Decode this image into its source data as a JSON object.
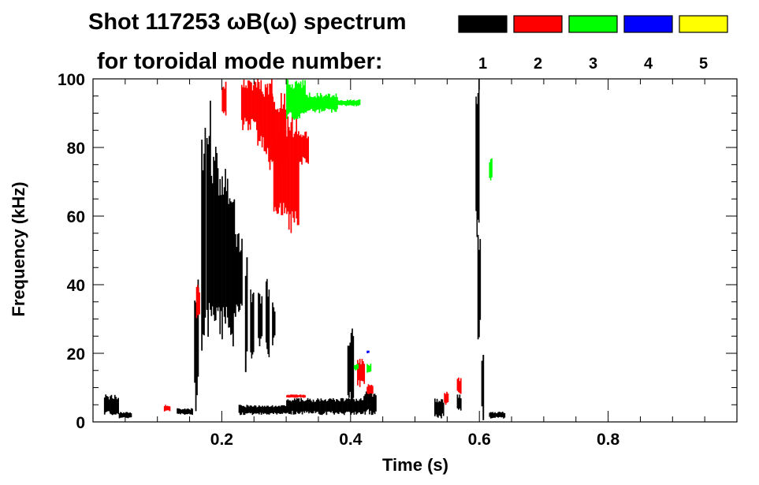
{
  "header": {
    "title_line1": "Shot 117253 ωB(ω) spectrum",
    "title_line2": "for toroidal mode number:"
  },
  "legend": [
    {
      "label": "1",
      "color": "#000000"
    },
    {
      "label": "2",
      "color": "#ff0000"
    },
    {
      "label": "3",
      "color": "#00ff00"
    },
    {
      "label": "4",
      "color": "#0000ff"
    },
    {
      "label": "5",
      "color": "#ffff00"
    }
  ],
  "chart_data": {
    "type": "heatmap",
    "xlabel": "Time (s)",
    "ylabel": "Frequency (kHz)",
    "xlim": [
      0,
      1.0
    ],
    "ylim": [
      0,
      100
    ],
    "x_ticks": [
      {
        "value": 0.2,
        "label": "0.2"
      },
      {
        "value": 0.4,
        "label": "0.4"
      },
      {
        "value": 0.6,
        "label": "0.6"
      },
      {
        "value": 0.8,
        "label": "0.8"
      }
    ],
    "y_ticks": [
      {
        "value": 0,
        "label": "0"
      },
      {
        "value": 20,
        "label": "20"
      },
      {
        "value": 40,
        "label": "40"
      },
      {
        "value": 60,
        "label": "60"
      },
      {
        "value": 80,
        "label": "80"
      },
      {
        "value": 100,
        "label": "100"
      }
    ],
    "grid": false,
    "series": [
      {
        "mode": "1",
        "color": "#000000",
        "regions": [
          {
            "t0": 0.017,
            "t1": 0.04,
            "f0": 2,
            "f1": 8
          },
          {
            "t0": 0.04,
            "t1": 0.06,
            "f0": 1,
            "f1": 3
          },
          {
            "t0": 0.13,
            "t1": 0.155,
            "f0": 2,
            "f1": 4
          },
          {
            "t0": 0.157,
            "t1": 0.164,
            "f0": 3,
            "f1": 45
          },
          {
            "t0": 0.168,
            "t1": 0.175,
            "f0": 12,
            "f1": 88
          },
          {
            "t0": 0.176,
            "t1": 0.183,
            "f0": 20,
            "f1": 100
          },
          {
            "t0": 0.183,
            "t1": 0.193,
            "f0": 28,
            "f1": 82
          },
          {
            "t0": 0.193,
            "t1": 0.213,
            "f0": 24,
            "f1": 76
          },
          {
            "t0": 0.213,
            "t1": 0.222,
            "f0": 22,
            "f1": 65
          },
          {
            "t0": 0.222,
            "t1": 0.232,
            "f0": 30,
            "f1": 55
          },
          {
            "t0": 0.236,
            "t1": 0.24,
            "f0": 12,
            "f1": 48
          },
          {
            "t0": 0.244,
            "t1": 0.25,
            "f0": 18,
            "f1": 40
          },
          {
            "t0": 0.256,
            "t1": 0.263,
            "f0": 22,
            "f1": 38
          },
          {
            "t0": 0.268,
            "t1": 0.274,
            "f0": 18,
            "f1": 42
          },
          {
            "t0": 0.278,
            "t1": 0.283,
            "f0": 22,
            "f1": 35
          },
          {
            "t0": 0.226,
            "t1": 0.3,
            "f0": 2,
            "f1": 5
          },
          {
            "t0": 0.3,
            "t1": 0.36,
            "f0": 2,
            "f1": 7
          },
          {
            "t0": 0.36,
            "t1": 0.42,
            "f0": 2,
            "f1": 7
          },
          {
            "t0": 0.395,
            "t1": 0.405,
            "f0": 3,
            "f1": 28
          },
          {
            "t0": 0.42,
            "t1": 0.44,
            "f0": 2,
            "f1": 9
          },
          {
            "t0": 0.53,
            "t1": 0.545,
            "f0": 1,
            "f1": 7
          },
          {
            "t0": 0.565,
            "t1": 0.572,
            "f0": 3,
            "f1": 8
          },
          {
            "t0": 0.594,
            "t1": 0.6,
            "f0": 50,
            "f1": 100
          },
          {
            "t0": 0.597,
            "t1": 0.602,
            "f0": 20,
            "f1": 60
          },
          {
            "t0": 0.603,
            "t1": 0.607,
            "f0": 0,
            "f1": 20
          },
          {
            "t0": 0.615,
            "t1": 0.64,
            "f0": 1,
            "f1": 3
          }
        ]
      },
      {
        "mode": "2",
        "color": "#ff0000",
        "regions": [
          {
            "t0": 0.11,
            "t1": 0.12,
            "f0": 3,
            "f1": 5
          },
          {
            "t0": 0.16,
            "t1": 0.166,
            "f0": 30,
            "f1": 40
          },
          {
            "t0": 0.2,
            "t1": 0.207,
            "f0": 88,
            "f1": 100
          },
          {
            "t0": 0.23,
            "t1": 0.26,
            "f0": 85,
            "f1": 100
          },
          {
            "t0": 0.255,
            "t1": 0.28,
            "f0": 78,
            "f1": 100
          },
          {
            "t0": 0.272,
            "t1": 0.3,
            "f0": 72,
            "f1": 96
          },
          {
            "t0": 0.28,
            "t1": 0.3,
            "f0": 60,
            "f1": 85
          },
          {
            "t0": 0.3,
            "t1": 0.32,
            "f0": 55,
            "f1": 90
          },
          {
            "t0": 0.32,
            "t1": 0.335,
            "f0": 75,
            "f1": 85
          },
          {
            "t0": 0.3,
            "t1": 0.33,
            "f0": 7,
            "f1": 8
          },
          {
            "t0": 0.41,
            "t1": 0.422,
            "f0": 10,
            "f1": 19
          },
          {
            "t0": 0.425,
            "t1": 0.435,
            "f0": 8,
            "f1": 11
          },
          {
            "t0": 0.545,
            "t1": 0.552,
            "f0": 5,
            "f1": 9
          },
          {
            "t0": 0.565,
            "t1": 0.572,
            "f0": 8,
            "f1": 13
          }
        ]
      },
      {
        "mode": "3",
        "color": "#00ff00",
        "regions": [
          {
            "t0": 0.3,
            "t1": 0.33,
            "f0": 88,
            "f1": 100
          },
          {
            "t0": 0.33,
            "t1": 0.38,
            "f0": 90,
            "f1": 96
          },
          {
            "t0": 0.38,
            "t1": 0.415,
            "f0": 92,
            "f1": 94
          },
          {
            "t0": 0.405,
            "t1": 0.412,
            "f0": 15,
            "f1": 17
          },
          {
            "t0": 0.425,
            "t1": 0.432,
            "f0": 14,
            "f1": 17
          },
          {
            "t0": 0.615,
            "t1": 0.62,
            "f0": 70,
            "f1": 77
          }
        ]
      },
      {
        "mode": "4",
        "color": "#0000ff",
        "regions": [
          {
            "t0": 0.425,
            "t1": 0.429,
            "f0": 20,
            "f1": 21
          }
        ]
      }
    ]
  }
}
